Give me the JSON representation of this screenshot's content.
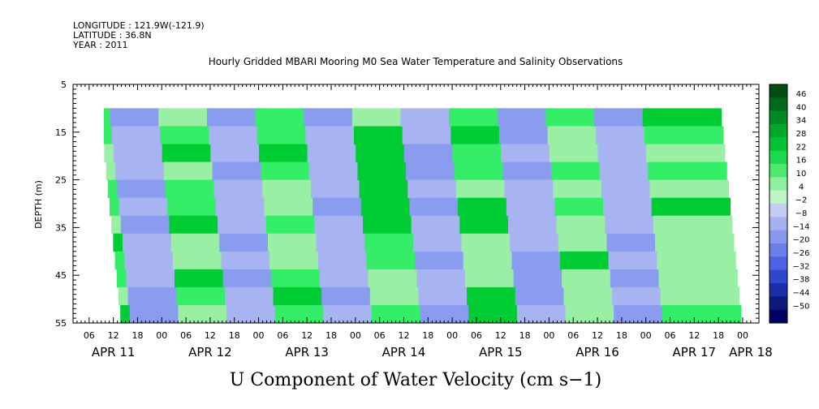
{
  "header": {
    "longitude": "LONGITUDE : 121.9W(-121.9)",
    "latitude": "LATITUDE : 36.8N",
    "year": "YEAR : 2011"
  },
  "colors": {
    "strong_positive": "#00cc33",
    "positive": "#33ee66",
    "weak_positive": "#99f0a5",
    "weak_negative": "#a8b4f2",
    "negative": "#8a9cf0",
    "strong_negative": "#000066"
  },
  "chart_data": {
    "type": "heatmap",
    "title": "Hourly Gridded MBARI Mooring M0 Sea Water Temperature and Salinity Observations",
    "caption": "U Component of Water Velocity (cm s−1)",
    "ylabel": "DEPTH (m)",
    "ylim": [
      5,
      55
    ],
    "y_inverted": true,
    "y_ticks": [
      5,
      15,
      25,
      35,
      45,
      55
    ],
    "data_depth_range": [
      10,
      55
    ],
    "x_hour_ticks": [
      "06",
      "12",
      "18",
      "00",
      "06",
      "12",
      "18",
      "00",
      "06",
      "12",
      "18",
      "00",
      "06",
      "12",
      "18",
      "00",
      "06",
      "12",
      "18",
      "00",
      "06",
      "12",
      "18",
      "00",
      "06",
      "12",
      "18",
      "00"
    ],
    "x_day_labels": [
      "APR 11",
      "APR 12",
      "APR 13",
      "APR 14",
      "APR 15",
      "APR 16",
      "APR 17",
      "APR 18"
    ],
    "colorbar": {
      "labels": [
        "46",
        "40",
        "34",
        "28",
        "22",
        "16",
        "10",
        "4",
        "−2",
        "−8",
        "−14",
        "−20",
        "−26",
        "−32",
        "−38",
        "−44",
        "−50"
      ],
      "min": -50,
      "max": 50
    },
    "value_bands": [
      {
        "x_start_hour": 0,
        "x_end_hour": 12,
        "dominant": "positive"
      },
      {
        "x_start_hour": 12,
        "x_end_hour": 24,
        "dominant": "negative"
      },
      {
        "x_start_hour": 24,
        "x_end_hour": 36,
        "dominant": "positive"
      },
      {
        "x_start_hour": 36,
        "x_end_hour": 48,
        "dominant": "negative"
      },
      {
        "x_start_hour": 48,
        "x_end_hour": 60,
        "dominant": "positive"
      },
      {
        "x_start_hour": 60,
        "x_end_hour": 72,
        "dominant": "negative"
      },
      {
        "x_start_hour": 72,
        "x_end_hour": 84,
        "dominant": "positive"
      },
      {
        "x_start_hour": 84,
        "x_end_hour": 96,
        "dominant": "negative"
      },
      {
        "x_start_hour": 96,
        "x_end_hour": 108,
        "dominant": "positive"
      },
      {
        "x_start_hour": 108,
        "x_end_hour": 120,
        "dominant": "negative"
      },
      {
        "x_start_hour": 120,
        "x_end_hour": 132,
        "dominant": "positive"
      },
      {
        "x_start_hour": 132,
        "x_end_hour": 144,
        "dominant": "negative"
      },
      {
        "x_start_hour": 144,
        "x_end_hour": 162,
        "dominant": "positive"
      }
    ]
  }
}
